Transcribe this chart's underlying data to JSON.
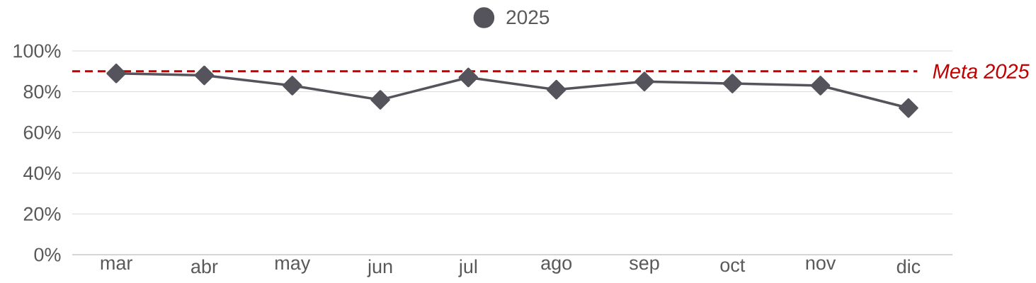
{
  "chart_data": {
    "type": "line",
    "categories": [
      "mar",
      "abr",
      "may",
      "jun",
      "jul",
      "ago",
      "sep",
      "oct",
      "nov",
      "dic"
    ],
    "series": [
      {
        "name": "2025",
        "color": "#55545c",
        "values": [
          89,
          88,
          83,
          76,
          87,
          81,
          85,
          84,
          83,
          72
        ]
      }
    ],
    "ylim": [
      0,
      100
    ],
    "yticks": [
      {
        "value": 0,
        "label": "0%"
      },
      {
        "value": 20,
        "label": "20%"
      },
      {
        "value": 40,
        "label": "40%"
      },
      {
        "value": 60,
        "label": "60%"
      },
      {
        "value": 80,
        "label": "80%"
      },
      {
        "value": 100,
        "label": "100%"
      }
    ],
    "grid": "y",
    "legend": "top",
    "marker": "diamond",
    "line_style": "solid",
    "ref_lines": [
      {
        "axis": "y",
        "value": 90,
        "label": "Meta 2025",
        "color": "#c00000",
        "line_style": "dashed"
      }
    ]
  }
}
